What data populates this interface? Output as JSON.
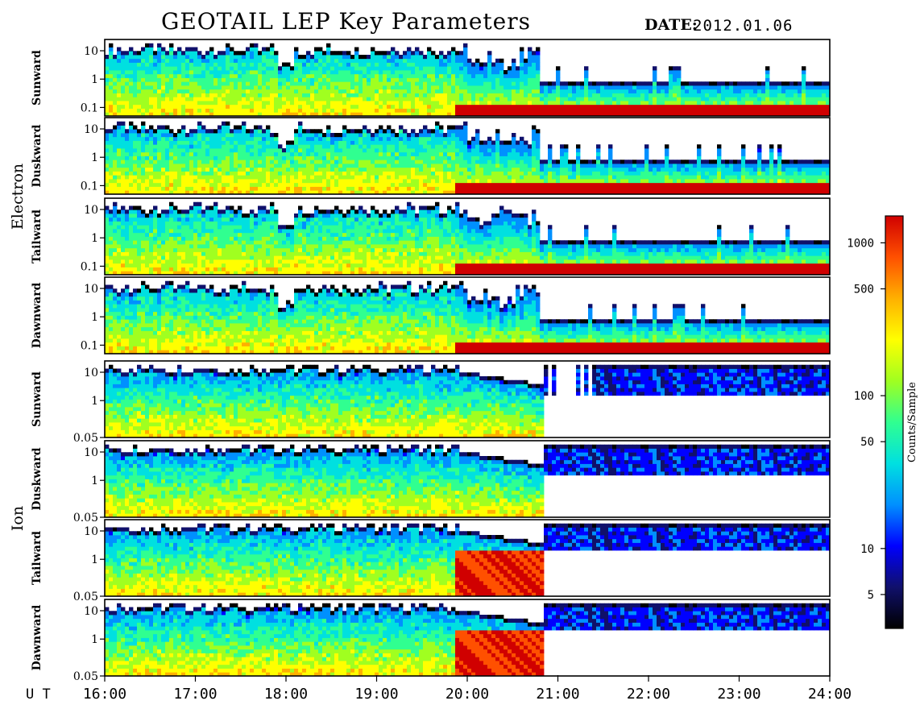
{
  "chart_data": {
    "type": "heatmap",
    "title": "GEOTAIL LEP Key Parameters",
    "date_label": "DATE:",
    "date_value": "2012.01.06",
    "x_axis": {
      "label": "U T",
      "ticks": [
        "16:00",
        "17:00",
        "18:00",
        "19:00",
        "20:00",
        "21:00",
        "22:00",
        "23:00",
        "24:00"
      ],
      "range_hours": [
        16,
        24
      ]
    },
    "groups": [
      {
        "name": "Electron",
        "panels": [
          "Sunward",
          "Duskward",
          "Tailward",
          "Dawnward"
        ],
        "y_ticks": [
          "10",
          "1",
          "0.1"
        ],
        "y_log": true,
        "y_range": [
          0.05,
          25
        ]
      },
      {
        "name": "Ion",
        "panels": [
          "Sunward",
          "Duskward",
          "Tailward",
          "Dawnward"
        ],
        "y_ticks": [
          "10",
          "1",
          "0.05"
        ],
        "y_log": true,
        "y_range": [
          0.05,
          25
        ]
      }
    ],
    "colorbar": {
      "label": "Counts/Sample",
      "scale": "log",
      "range": [
        3,
        1500
      ],
      "ticks": [
        1000,
        500,
        100,
        50,
        10,
        5
      ],
      "colors": [
        "#000000",
        "#10106b",
        "#0000ff",
        "#0090ff",
        "#00e0e0",
        "#30ff90",
        "#a0ff20",
        "#ffff00",
        "#ffb000",
        "#ff5000",
        "#d00000"
      ]
    },
    "colorbar_tick_labels": [
      "1000",
      "500",
      "100",
      "50",
      "10",
      "5"
    ],
    "features": {
      "electron_upper_boundary_before_20UT": 10,
      "electron_upper_boundary_after_21UT": 0.7,
      "electron_low_energy_high_counts_after": "19:50",
      "ion_data_gap_start": "20:50",
      "ion_tailward_dawnward_resume": "21:00"
    }
  }
}
